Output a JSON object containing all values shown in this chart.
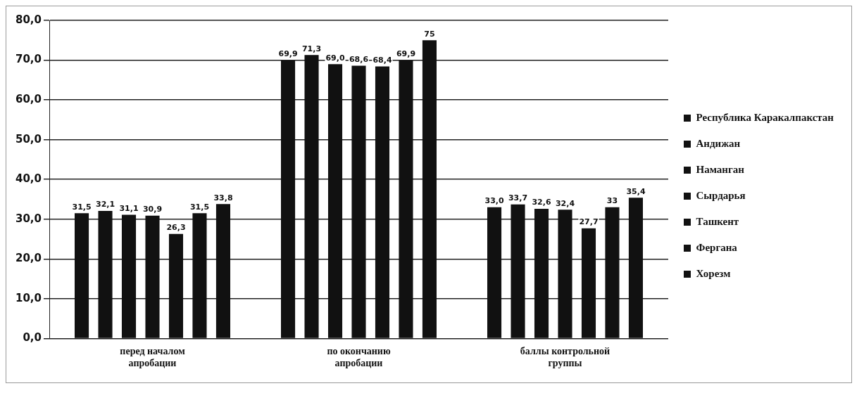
{
  "chart_data": {
    "type": "bar",
    "categories": [
      "перед началом апробации",
      "по окончанию апробации",
      "баллы контрольной группы"
    ],
    "series": [
      {
        "name": "Республика Каракалпакстан",
        "color": "#111111",
        "values": [
          31.5,
          69.9,
          33.0
        ],
        "value_labels": [
          "31,5",
          "69,9",
          "33,0"
        ]
      },
      {
        "name": "Андижан",
        "color": "#111111",
        "values": [
          32.1,
          71.3,
          33.7
        ],
        "value_labels": [
          "32,1",
          "71,3",
          "33,7"
        ]
      },
      {
        "name": "Наманган",
        "color": "#111111",
        "values": [
          31.1,
          69.0,
          32.6
        ],
        "value_labels": [
          "31,1",
          "69,0",
          "32,6"
        ]
      },
      {
        "name": "Сырдарья",
        "color": "#111111",
        "values": [
          30.9,
          68.6,
          32.4
        ],
        "value_labels": [
          "30,9",
          "68,6",
          "32,4"
        ]
      },
      {
        "name": "Ташкент",
        "color": "#111111",
        "values": [
          26.3,
          68.4,
          27.7
        ],
        "value_labels": [
          "26,3",
          "68,4",
          "27,7"
        ]
      },
      {
        "name": "Фергана",
        "color": "#111111",
        "values": [
          31.5,
          69.9,
          33
        ],
        "value_labels": [
          "31,5",
          "69,9",
          "33"
        ]
      },
      {
        "name": "Хорезм",
        "color": "#111111",
        "values": [
          33.8,
          75,
          35.4
        ],
        "value_labels": [
          "33,8",
          "75",
          "35,4"
        ]
      }
    ],
    "ylim": [
      0,
      80
    ],
    "yticks": [
      {
        "value": 0,
        "label": "0,0"
      },
      {
        "value": 10,
        "label": "10,0"
      },
      {
        "value": 20,
        "label": "20,0"
      },
      {
        "value": 30,
        "label": "30,0"
      },
      {
        "value": 40,
        "label": "40,0"
      },
      {
        "value": 50,
        "label": "50,0"
      },
      {
        "value": 60,
        "label": "60,0"
      },
      {
        "value": 70,
        "label": "70,0"
      },
      {
        "value": 80,
        "label": "80,0"
      }
    ],
    "grid": "y",
    "legend": "right"
  }
}
